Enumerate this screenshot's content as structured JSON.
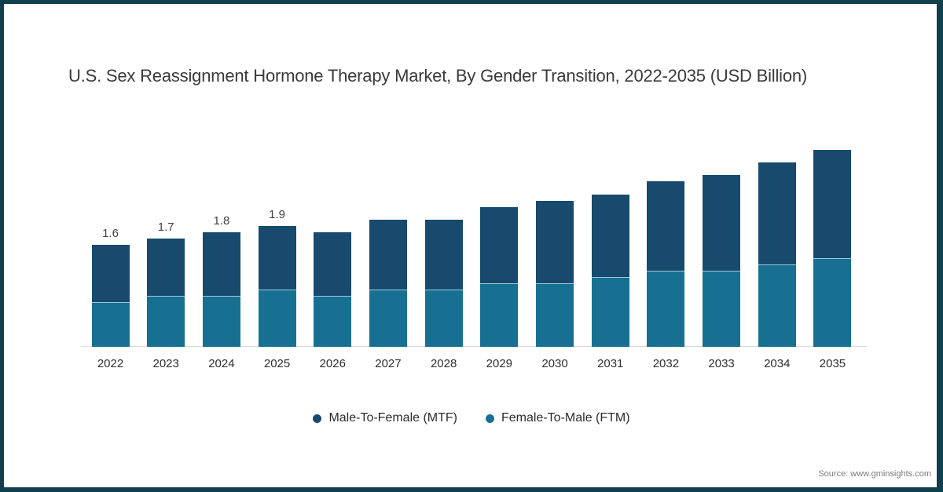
{
  "frame": {
    "border_color": "#113f4e",
    "background": "#ffffff"
  },
  "title": "U.S. Sex Reassignment Hormone Therapy Market, By Gender Transition, 2022-2035 (USD Billion)",
  "legend": [
    {
      "label": "Male-To-Female (MTF)",
      "color": "#174a6c"
    },
    {
      "label": "Female-To-Male (FTM)",
      "color": "#177092"
    }
  ],
  "source": "Source: www.gminsights.com",
  "chart_data": {
    "type": "bar",
    "stacked": true,
    "title": "U.S. Sex Reassignment Hormone Therapy Market, By Gender Transition, 2022-2035 (USD Billion)",
    "xlabel": "",
    "ylabel": "USD Billion",
    "ylim": [
      0,
      3.5
    ],
    "grid": false,
    "legend_position": "bottom",
    "categories": [
      "2022",
      "2023",
      "2024",
      "2025",
      "2026",
      "2027",
      "2028",
      "2029",
      "2030",
      "2031",
      "2032",
      "2033",
      "2034",
      "2035"
    ],
    "series": [
      {
        "name": "Male-To-Female (MTF)",
        "color": "#174a6c",
        "values": [
          0.9,
          0.9,
          1.0,
          1.0,
          1.0,
          1.1,
          1.1,
          1.2,
          1.3,
          1.3,
          1.4,
          1.5,
          1.6,
          1.7
        ]
      },
      {
        "name": "Female-To-Male (FTM)",
        "color": "#177092",
        "values": [
          0.7,
          0.8,
          0.8,
          0.9,
          0.8,
          0.9,
          0.9,
          1.0,
          1.0,
          1.1,
          1.2,
          1.2,
          1.3,
          1.4
        ]
      }
    ],
    "totals": [
      1.6,
      1.7,
      1.8,
      1.9,
      1.8,
      2.0,
      2.0,
      2.2,
      2.3,
      2.4,
      2.6,
      2.7,
      2.9,
      3.1
    ],
    "bar_labels": [
      "1.6",
      "1.7",
      "1.8",
      "1.9",
      "",
      "",
      "",
      "",
      "",
      "",
      "",
      "",
      "",
      ""
    ],
    "separator_line_color": "#9ccadb",
    "axis_line_color": "#d9d9d9"
  }
}
